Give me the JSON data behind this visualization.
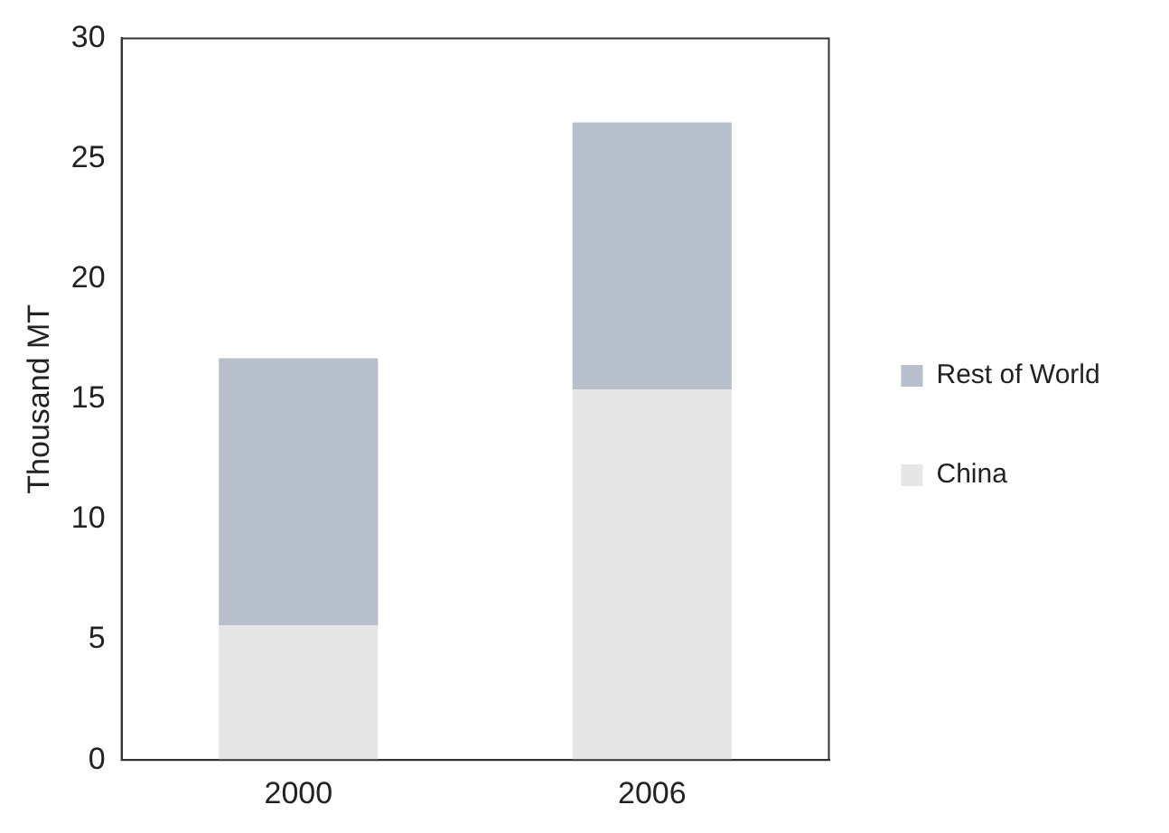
{
  "chart_data": {
    "type": "bar",
    "stacked": true,
    "categories": [
      "2000",
      "2006"
    ],
    "ylabel": "Thousand MT",
    "series": [
      {
        "name": "China",
        "color": "#e6e6e6",
        "values": [
          5.6,
          15.4
        ]
      },
      {
        "name": "Rest of World",
        "color": "#b7bfcc",
        "values": [
          11.1,
          11.1
        ]
      }
    ],
    "ylim": [
      0,
      30
    ],
    "yticks": [
      0,
      5,
      10,
      15,
      20,
      25,
      30
    ],
    "grid": false,
    "legend": "right"
  }
}
